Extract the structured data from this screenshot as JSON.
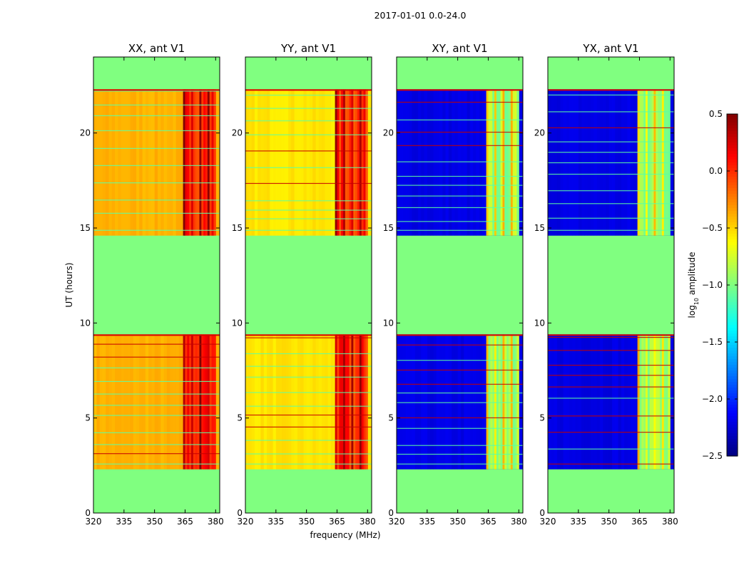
{
  "chart_data": {
    "type": "heatmap",
    "suptitle": "2017-01-01 0.0-24.0",
    "xlabel": "frequency (MHz)",
    "ylabel": "UT (hours)",
    "xlim": [
      320,
      382
    ],
    "ylim": [
      0,
      24
    ],
    "xticks": [
      "320",
      "335",
      "350",
      "365",
      "380"
    ],
    "yticks": [
      "0",
      "5",
      "10",
      "15",
      "20"
    ],
    "panels": [
      {
        "title": "XX, ant V1",
        "base_level": -0.4,
        "rfi_level": 0.05,
        "rfi_band_mhz": [
          364,
          380
        ]
      },
      {
        "title": "YY, ant V1",
        "base_level": -0.55,
        "rfi_level": 0.0,
        "rfi_band_mhz": [
          364,
          380
        ]
      },
      {
        "title": "XY, ant V1",
        "base_level": -2.2,
        "rfi_level": -0.9,
        "rfi_band_mhz": [
          364,
          380
        ]
      },
      {
        "title": "YX, ant V1",
        "base_level": -2.2,
        "rfi_level": -0.9,
        "rfi_band_mhz": [
          364,
          380
        ]
      }
    ],
    "flagged_intervals_hours": [
      [
        0.0,
        2.3
      ],
      [
        9.4,
        14.6
      ],
      [
        22.3,
        24.0
      ]
    ],
    "observed_intervals_hours": [
      [
        2.3,
        9.4
      ],
      [
        14.6,
        22.3
      ]
    ],
    "flag_value": -1.0,
    "colorbar": {
      "label": "log10 amplitude",
      "label_main": "log",
      "label_sub": "10",
      "label_rest": " amplitude",
      "min": -2.5,
      "max": 0.5,
      "ticks": [
        "0.5",
        "0.0",
        "−0.5",
        "−1.0",
        "−1.5",
        "−2.0",
        "−2.5"
      ],
      "colormap": "jet"
    }
  }
}
